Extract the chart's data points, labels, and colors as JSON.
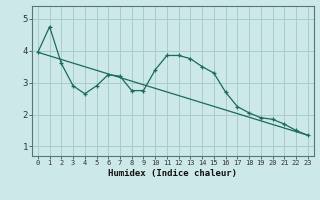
{
  "title": "",
  "xlabel": "Humidex (Indice chaleur)",
  "background_color": "#cce8e8",
  "grid_color": "#aacccc",
  "line_color": "#1a6b5a",
  "xlim": [
    -0.5,
    23.5
  ],
  "ylim": [
    0.7,
    5.4
  ],
  "yticks": [
    1,
    2,
    3,
    4,
    5
  ],
  "xticks": [
    0,
    1,
    2,
    3,
    4,
    5,
    6,
    7,
    8,
    9,
    10,
    11,
    12,
    13,
    14,
    15,
    16,
    17,
    18,
    19,
    20,
    21,
    22,
    23
  ],
  "series1": {
    "x": [
      0,
      1,
      2,
      3,
      4,
      5,
      6,
      7,
      8,
      9,
      10,
      11,
      12,
      13,
      14,
      15,
      16,
      17,
      18,
      19,
      20,
      21,
      22,
      23
    ],
    "y": [
      3.95,
      4.75,
      3.6,
      2.9,
      2.65,
      2.9,
      3.25,
      3.2,
      2.75,
      2.75,
      3.4,
      3.85,
      3.85,
      3.75,
      3.5,
      3.3,
      2.7,
      2.25,
      2.05,
      1.9,
      1.85,
      1.7,
      1.5,
      1.35
    ]
  },
  "series2": {
    "x": [
      0,
      23
    ],
    "y": [
      3.95,
      1.35
    ]
  }
}
